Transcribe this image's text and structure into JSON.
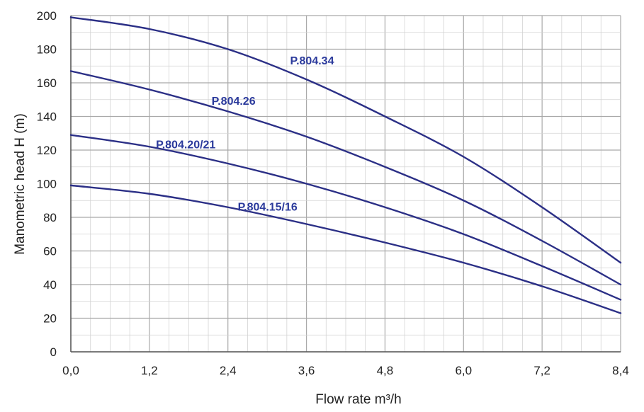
{
  "chart_data": {
    "type": "line",
    "title": "",
    "xlabel": "Flow rate m³/h",
    "ylabel": "Manometric head H  (m)",
    "xlim": [
      0,
      8.4
    ],
    "ylim": [
      0,
      200
    ],
    "x_ticks": [
      "0,0",
      "1,2",
      "2,4",
      "3,6",
      "4,8",
      "6,0",
      "7,2",
      "8,4"
    ],
    "x_tick_values": [
      0,
      1.2,
      2.4,
      3.6,
      4.8,
      6.0,
      7.2,
      8.4
    ],
    "y_ticks": [
      "0",
      "20",
      "40",
      "60",
      "80",
      "100",
      "120",
      "140",
      "160",
      "180",
      "200"
    ],
    "y_tick_values": [
      0,
      20,
      40,
      60,
      80,
      100,
      120,
      140,
      160,
      180,
      200
    ],
    "x_minor_step": 0.3,
    "y_minor_step": 10,
    "grid": true,
    "line_color": "#2b2f86",
    "label_color": "#2b3a9c",
    "series": [
      {
        "name": "P.804.34",
        "x": [
          0,
          1.2,
          2.4,
          3.6,
          4.8,
          6.0,
          7.2,
          8.4
        ],
        "y": [
          199,
          192,
          180,
          162,
          140,
          116,
          86,
          53
        ],
        "label_pos": [
          3.35,
          171
        ]
      },
      {
        "name": "P.804.26",
        "x": [
          0,
          1.2,
          2.4,
          3.6,
          4.8,
          6.0,
          7.2,
          8.4
        ],
        "y": [
          167,
          156,
          143,
          128,
          110,
          90,
          66,
          40
        ],
        "label_pos": [
          2.15,
          147
        ]
      },
      {
        "name": "P.804.20/21",
        "x": [
          0,
          1.2,
          2.4,
          3.6,
          4.8,
          6.0,
          7.2,
          8.4
        ],
        "y": [
          129,
          122,
          112,
          100,
          86,
          70,
          51,
          31
        ],
        "label_pos": [
          1.3,
          121
        ]
      },
      {
        "name": "P.804.15/16",
        "x": [
          0,
          1.2,
          2.4,
          3.6,
          4.8,
          6.0,
          7.2,
          8.4
        ],
        "y": [
          99,
          94,
          86,
          76,
          65,
          53,
          39,
          23
        ],
        "label_pos": [
          2.55,
          84
        ]
      }
    ]
  }
}
